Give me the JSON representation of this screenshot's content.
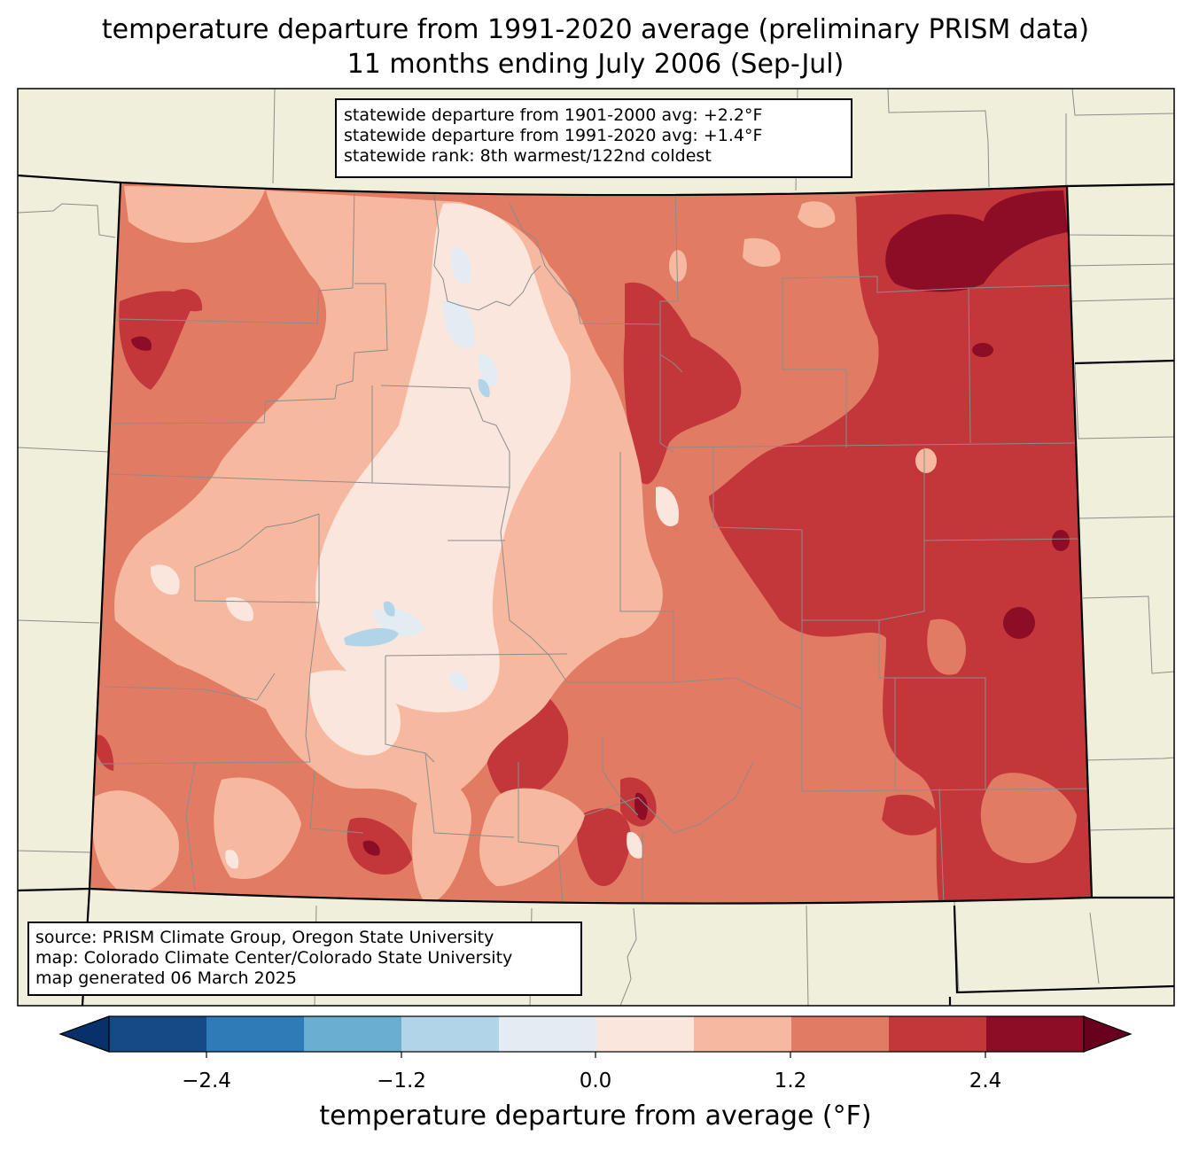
{
  "title": {
    "line1": "temperature departure from 1991-2020 average (preliminary PRISM data)",
    "line2": "11 months ending July 2006 (Sep-Jul)"
  },
  "stats_box": {
    "line1": "statewide departure from 1901-2000 avg: +2.2°F",
    "line2": "statewide departure from 1991-2020 avg: +1.4°F",
    "line3": "statewide rank: 8th warmest/122nd coldest"
  },
  "source_box": {
    "line1": "source: PRISM Climate Group, Oregon State University",
    "line2": "map: Colorado Climate Center/Colorado State University",
    "line3": "map generated 06 March 2025"
  },
  "colorbar": {
    "label": "temperature departure from average (°F)",
    "ticks": [
      "−2.4",
      "−1.2",
      "0.0",
      "1.2",
      "2.4"
    ],
    "colors": [
      "#08306b",
      "#144b86",
      "#2f7bb8",
      "#6aaed2",
      "#b2d4e8",
      "#e4ecf3",
      "#fae6dc",
      "#f6b9a0",
      "#e27b64",
      "#c3373a",
      "#8c0d25",
      "#67001f"
    ]
  },
  "map_colors": {
    "land": "#efefdc",
    "dark_red": "#8c0d25",
    "red": "#c3373a",
    "salmon": "#e27b64",
    "light_salmon": "#f6b9a0",
    "near_zero": "#fae6dc",
    "pale_blue": "#e4ecf3",
    "light_blue": "#b2d4e8"
  }
}
